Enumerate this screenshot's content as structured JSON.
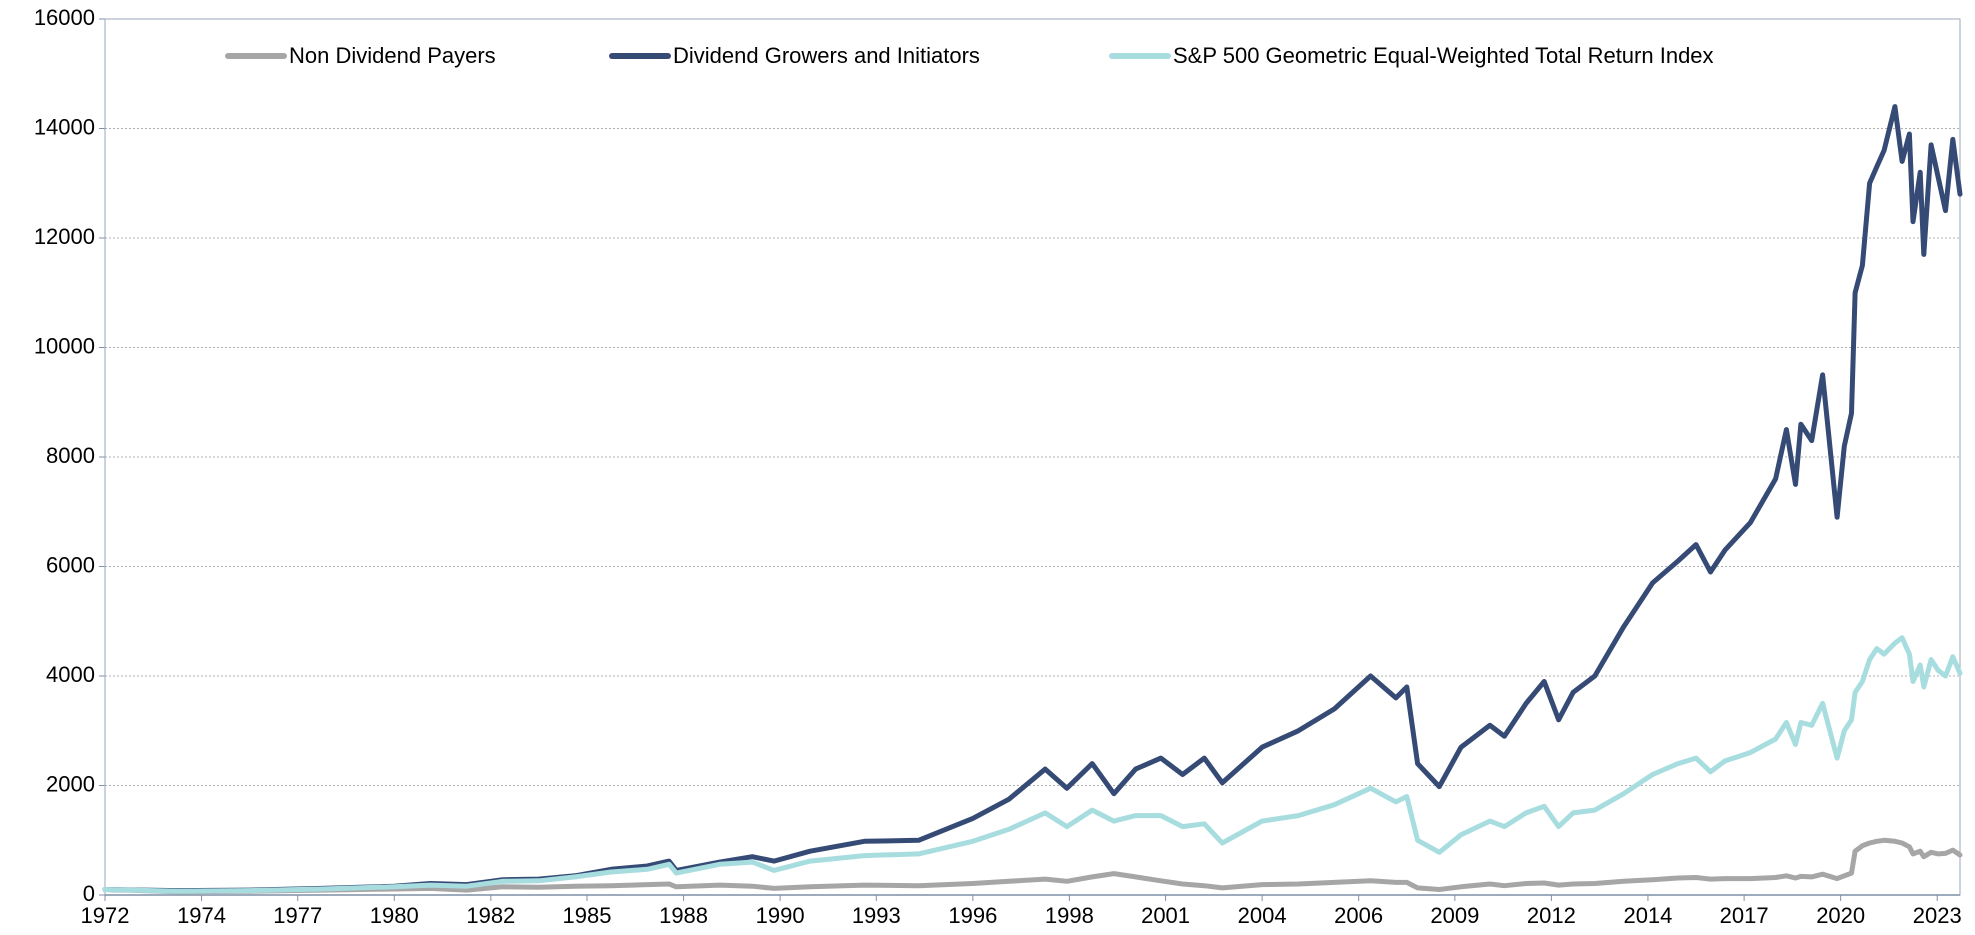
{
  "chart_data": {
    "type": "line",
    "x": [
      1972,
      1974,
      1976,
      1978,
      1980,
      1981,
      1982,
      1983,
      1984,
      1985,
      1986,
      1987,
      1987.6,
      1987.8,
      1989,
      1989.9,
      1990.5,
      1991.5,
      1993,
      1994.5,
      1996,
      1997,
      1998,
      1998.6,
      1999.3,
      1999.9,
      2000.5,
      2001.2,
      2001.8,
      2002.4,
      2002.9,
      2004,
      2005,
      2006,
      2007,
      2007.7,
      2008,
      2008.3,
      2008.9,
      2009.5,
      2010.3,
      2010.7,
      2011.3,
      2011.8,
      2012.2,
      2012.6,
      2013.2,
      2014,
      2014.8,
      2015.5,
      2016,
      2016.4,
      2016.8,
      2017.5,
      2018.2,
      2018.5,
      2018.75,
      2018.9,
      2019.2,
      2019.5,
      2019.9,
      2020.1,
      2020.3,
      2020.4,
      2020.6,
      2020.8,
      2021.0,
      2021.2,
      2021.5,
      2021.7,
      2021.9,
      2022.0,
      2022.2,
      2022.3,
      2022.5,
      2022.7,
      2022.9,
      2023.1,
      2023.3
    ],
    "series": [
      {
        "name": "Non Dividend Payers",
        "color": "#a6a6a6",
        "values": [
          100,
          60,
          70,
          90,
          110,
          120,
          90,
          150,
          140,
          160,
          170,
          190,
          200,
          150,
          180,
          160,
          120,
          150,
          180,
          170,
          210,
          250,
          290,
          250,
          330,
          390,
          330,
          260,
          200,
          170,
          130,
          190,
          200,
          230,
          260,
          230,
          230,
          130,
          100,
          150,
          200,
          170,
          210,
          220,
          180,
          200,
          210,
          250,
          280,
          310,
          320,
          290,
          300,
          300,
          320,
          350,
          310,
          340,
          330,
          380,
          300,
          350,
          400,
          800,
          900,
          950,
          980,
          1000,
          980,
          950,
          880,
          750,
          800,
          700,
          780,
          750,
          760,
          820,
          730
        ]
      },
      {
        "name": "Dividend Growers and Initiators",
        "color": "#354a74",
        "values": [
          100,
          80,
          90,
          120,
          160,
          210,
          190,
          280,
          290,
          350,
          470,
          530,
          620,
          450,
          600,
          700,
          620,
          800,
          980,
          1000,
          1400,
          1750,
          2300,
          1950,
          2400,
          1850,
          2300,
          2500,
          2200,
          2500,
          2050,
          2700,
          3000,
          3400,
          4000,
          3600,
          3800,
          2400,
          1980,
          2700,
          3100,
          2900,
          3500,
          3900,
          3200,
          3700,
          4000,
          4900,
          5700,
          6100,
          6400,
          5900,
          6300,
          6800,
          7600,
          8500,
          7500,
          8600,
          8300,
          9500,
          6900,
          8200,
          8800,
          11000,
          11500,
          13000,
          13300,
          13600,
          14400,
          13400,
          13900,
          12300,
          13200,
          11700,
          13700,
          13100,
          12500,
          13800,
          12800
        ]
      },
      {
        "name": "S&P 500 Geometric Equal-Weighted Total Return Index",
        "color": "#a8dde0",
        "values": [
          100,
          70,
          80,
          110,
          150,
          180,
          160,
          250,
          260,
          330,
          420,
          470,
          560,
          400,
          560,
          600,
          450,
          620,
          720,
          750,
          980,
          1200,
          1500,
          1250,
          1550,
          1350,
          1450,
          1450,
          1250,
          1300,
          950,
          1350,
          1450,
          1650,
          1950,
          1700,
          1800,
          1000,
          780,
          1100,
          1350,
          1250,
          1500,
          1620,
          1250,
          1500,
          1550,
          1850,
          2200,
          2400,
          2500,
          2250,
          2450,
          2600,
          2850,
          3150,
          2750,
          3150,
          3100,
          3500,
          2500,
          3000,
          3200,
          3700,
          3900,
          4300,
          4500,
          4400,
          4600,
          4700,
          4400,
          3900,
          4200,
          3800,
          4300,
          4100,
          4000,
          4350,
          4050
        ]
      }
    ],
    "xlim": [
      1972,
      2023.3
    ],
    "xticks": [
      1972,
      {
        "value": 1974.67,
        "label": "1974"
      },
      {
        "value": 1977.33,
        "label": "1977"
      },
      1980,
      {
        "value": 1982.67,
        "label": "1982"
      },
      {
        "value": 1985.33,
        "label": "1985"
      },
      1988,
      {
        "value": 1990.67,
        "label": "1990"
      },
      {
        "value": 1993.33,
        "label": "1993"
      },
      1996,
      {
        "value": 1998.67,
        "label": "1998"
      },
      {
        "value": 2001.33,
        "label": "2001"
      },
      2004,
      {
        "value": 2006.67,
        "label": "2006"
      },
      {
        "value": 2009.33,
        "label": "2009"
      },
      2012,
      {
        "value": 2014.67,
        "label": "2014"
      },
      {
        "value": 2017.33,
        "label": "2017"
      },
      2020,
      {
        "value": 2022.67,
        "label": "2023"
      }
    ],
    "ylim": [
      0,
      16000
    ],
    "yticks": [
      0,
      2000,
      4000,
      6000,
      8000,
      10000,
      12000,
      14000,
      16000
    ],
    "grid": true,
    "legend": "top"
  }
}
